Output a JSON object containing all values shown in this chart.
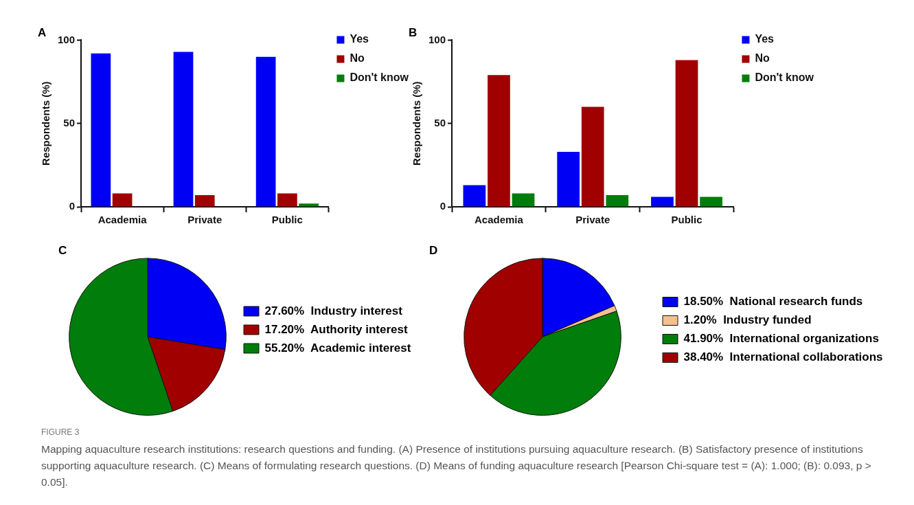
{
  "chart_data": [
    {
      "type": "bar",
      "title": "A",
      "ylabel": "Respondents (%)",
      "categories": [
        "Academia",
        "Private",
        "Public"
      ],
      "ylim": [
        0,
        100
      ],
      "yticks": [
        0,
        50,
        100
      ],
      "grid": false,
      "legend": "top right",
      "series": [
        {
          "name": "Yes",
          "color": "#0000f5",
          "values": [
            92,
            93,
            90
          ]
        },
        {
          "name": "No",
          "color": "#a00000",
          "values": [
            8,
            7,
            8
          ]
        },
        {
          "name": "Don't know",
          "color": "#007d0b",
          "values": [
            0,
            0,
            2
          ]
        }
      ]
    },
    {
      "type": "bar",
      "title": "B",
      "ylabel": "Respondents (%)",
      "categories": [
        "Academia",
        "Private",
        "Public"
      ],
      "ylim": [
        0,
        100
      ],
      "yticks": [
        0,
        50,
        100
      ],
      "grid": false,
      "legend": "top right",
      "series": [
        {
          "name": "Yes",
          "color": "#0000f5",
          "values": [
            13,
            33,
            6
          ]
        },
        {
          "name": "No",
          "color": "#a00000",
          "values": [
            79,
            60,
            88
          ]
        },
        {
          "name": "Don't know",
          "color": "#007d0b",
          "values": [
            8,
            7,
            6
          ]
        }
      ]
    },
    {
      "type": "pie",
      "title": "C",
      "legend": "right",
      "categories": [
        "Industry interest",
        "Authority interest",
        "Academic interest"
      ],
      "values": [
        27.6,
        17.2,
        55.2
      ],
      "value_labels": [
        "27.60%",
        "17.20%",
        "55.20%"
      ],
      "colors": [
        "#0000f5",
        "#a00000",
        "#007d0b"
      ]
    },
    {
      "type": "pie",
      "title": "D",
      "legend": "right",
      "categories": [
        "National research funds",
        "Industry funded",
        "International organizations",
        "International collaborations"
      ],
      "values": [
        18.5,
        1.2,
        41.9,
        38.4
      ],
      "value_labels": [
        "18.50%",
        "1.20%",
        "41.90%",
        "38.40%"
      ],
      "colors": [
        "#0000f5",
        "#f5c08f",
        "#007d0b",
        "#a00000"
      ]
    },
    {
      "type": "other",
      "title": "FIGURE 3",
      "annotations": [
        "Mapping aquaculture research institutions: research questions and funding. (A) Presence of institutions pursuing aquaculture research. (B) Satisfactory presence of institutions supporting aquaculture research. (C) Means of formulating research questions. (D) Means of funding aquaculture research [Pearson Chi-square test = (A): 1.000; (B): 0.093, p > 0.05]."
      ]
    }
  ]
}
